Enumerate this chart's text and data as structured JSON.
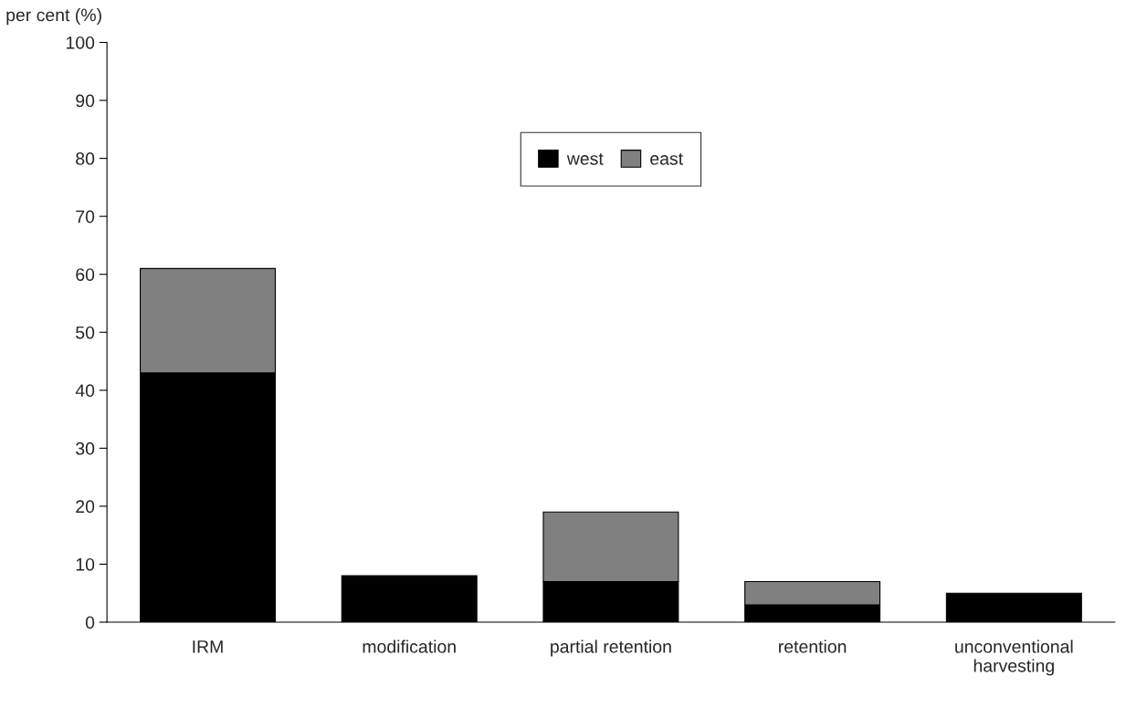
{
  "chart_data": {
    "type": "bar",
    "ylabel": "per cent (%)",
    "categories": [
      "IRM",
      "modification",
      "partial retention",
      "retention",
      "unconventional\nharvesting"
    ],
    "stacked": true,
    "series": [
      {
        "name": "west",
        "color": "#000000",
        "values": [
          43,
          8,
          7,
          3,
          5
        ]
      },
      {
        "name": "east",
        "color": "#808080",
        "values": [
          18,
          null,
          12,
          4,
          null
        ]
      }
    ],
    "ylim": [
      0,
      100
    ],
    "yticks": [
      0,
      10,
      20,
      30,
      40,
      50,
      60,
      70,
      80,
      90,
      100
    ],
    "grid": false,
    "legend": "top"
  }
}
